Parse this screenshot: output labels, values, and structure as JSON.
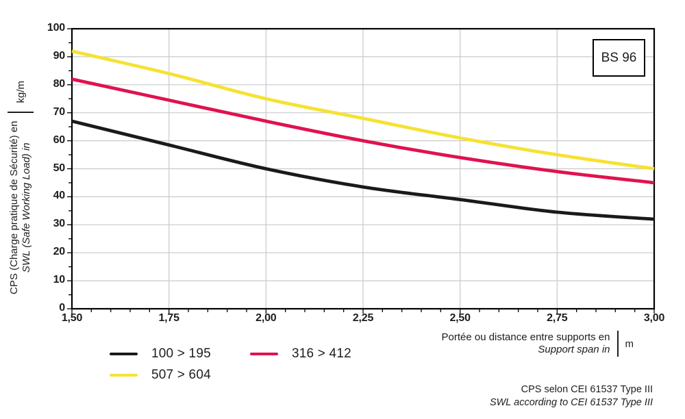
{
  "chart": {
    "badge": "BS 96",
    "y_axis": {
      "title_fr": "CPS (Charge pratique de Sécurité) en",
      "title_en": "SWL (Safe Working Load) in",
      "unit": "kg/m",
      "tick_labels": [
        "100",
        "90",
        "80",
        "70",
        "60",
        "50",
        "40",
        "30",
        "20",
        "10",
        "0"
      ],
      "tick_values": [
        100,
        90,
        80,
        70,
        60,
        50,
        40,
        30,
        20,
        10,
        0
      ]
    },
    "x_axis": {
      "title_fr": "Portée ou distance entre supports en",
      "title_en": "Support span in",
      "unit": "m",
      "tick_labels": [
        "1,50",
        "1,75",
        "2,00",
        "2,25",
        "2,50",
        "2,75",
        "3,00"
      ],
      "tick_values": [
        1.5,
        1.75,
        2.0,
        2.25,
        2.5,
        2.75,
        3.0
      ]
    },
    "note_fr": "CPS selon CEI 61537 Type III",
    "note_en": "SWL according to CEI 61537 Type III"
  },
  "chart_data": {
    "type": "line",
    "title": "",
    "xlabel": "Portée ou distance entre supports en / Support span in (m)",
    "ylabel": "CPS (Charge pratique de Sécurité) en / SWL (Safe Working Load) in (kg/m)",
    "x": [
      1.5,
      1.75,
      2.0,
      2.25,
      2.5,
      2.75,
      3.0
    ],
    "series": [
      {
        "name": "100 > 195",
        "color": "#1a1a1a",
        "values": [
          67,
          58.5,
          50,
          43.5,
          39,
          34.5,
          32
        ]
      },
      {
        "name": "316 > 412",
        "color": "#e01250",
        "values": [
          82,
          74.5,
          67,
          60,
          54,
          49,
          45
        ]
      },
      {
        "name": "507 > 604",
        "color": "#f5e233",
        "values": [
          92,
          84,
          75,
          68,
          61,
          55,
          50
        ]
      }
    ],
    "xlim": [
      1.5,
      3.0
    ],
    "ylim": [
      0,
      100
    ],
    "x_major_step": 0.25,
    "x_minor_step": 0.05,
    "y_major_step": 10,
    "y_minor_step": 5,
    "grid": true,
    "legend_position": "bottom-left"
  },
  "colors": {
    "grid": "#c9c9c9",
    "axis": "#000000",
    "text": "#1d1d1b"
  }
}
